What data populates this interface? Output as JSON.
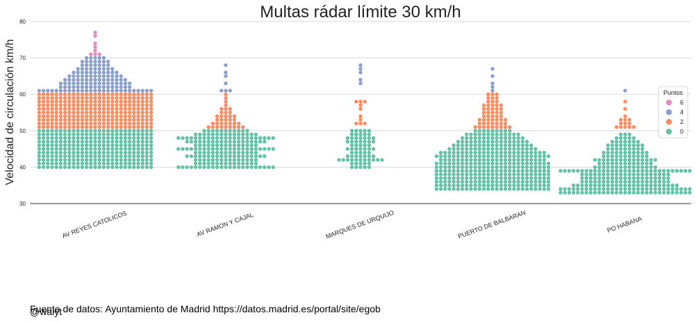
{
  "chart_data": {
    "type": "swarm",
    "title": "Multas rádar límite 30 km/h",
    "xlabel": "",
    "ylabel": "Velocidad de circulación km/h",
    "ylim": [
      30,
      80
    ],
    "yticks": [
      30,
      40,
      50,
      60,
      70,
      80
    ],
    "grid": "horizontal",
    "legend_position": "right",
    "legend_title": "Puntos",
    "series": [
      {
        "name": "6",
        "color": "#e78ac3"
      },
      {
        "name": "4",
        "color": "#8da0cb"
      },
      {
        "name": "2",
        "color": "#fc8d62"
      },
      {
        "name": "0",
        "color": "#66c2a5"
      }
    ],
    "categories": [
      "AV REYES CATOLICOS",
      "AV RAMON Y CAJAL",
      "MARQUES DE URQUIJO",
      "PUERTO DE BALBARAN",
      "PO HABANA"
    ],
    "distributions": [
      {
        "speeds": [
          40,
          41,
          42,
          43,
          44,
          45,
          46,
          47,
          48,
          49,
          50,
          51,
          52,
          53,
          54,
          55,
          56,
          57,
          58,
          59,
          60,
          61,
          62,
          63,
          64,
          65,
          66,
          67,
          68,
          69,
          70,
          71,
          72,
          73,
          74,
          76,
          77
        ],
        "counts": [
          27,
          27,
          27,
          27,
          27,
          27,
          27,
          27,
          27,
          27,
          27,
          27,
          27,
          27,
          27,
          27,
          27,
          27,
          27,
          27,
          27,
          27,
          17,
          17,
          15,
          13,
          11,
          9,
          7,
          7,
          5,
          3,
          1,
          1,
          1,
          1,
          1
        ]
      },
      {
        "speeds": [
          40,
          41,
          42,
          43,
          44,
          45,
          46,
          47,
          48,
          49,
          50,
          51,
          52,
          53,
          54,
          55,
          56,
          57,
          58,
          59,
          60,
          61,
          63,
          65,
          66,
          68
        ],
        "counts": [
          23,
          15,
          15,
          19,
          15,
          23,
          15,
          19,
          23,
          15,
          11,
          9,
          7,
          5,
          5,
          3,
          3,
          1,
          1,
          1,
          1,
          3,
          1,
          1,
          1,
          1
        ]
      },
      {
        "speeds": [
          40,
          41,
          42,
          43,
          44,
          45,
          46,
          47,
          48,
          49,
          50,
          52,
          53,
          54,
          56,
          57,
          58,
          63,
          64,
          66,
          67,
          68
        ],
        "counts": [
          5,
          5,
          11,
          7,
          5,
          7,
          5,
          7,
          7,
          5,
          5,
          3,
          1,
          1,
          1,
          1,
          3,
          1,
          1,
          1,
          1,
          1
        ]
      },
      {
        "speeds": [
          34,
          35,
          36,
          37,
          38,
          39,
          40,
          41,
          42,
          43,
          44,
          45,
          46,
          47,
          48,
          49,
          50,
          51,
          52,
          53,
          54,
          55,
          56,
          57,
          58,
          59,
          60,
          61,
          62,
          63,
          65,
          67
        ],
        "counts": [
          27,
          27,
          27,
          27,
          27,
          27,
          27,
          27,
          25,
          27,
          25,
          21,
          19,
          17,
          15,
          13,
          9,
          9,
          7,
          7,
          5,
          5,
          5,
          5,
          3,
          3,
          3,
          1,
          1,
          1,
          1,
          1
        ]
      },
      {
        "speeds": [
          33,
          34,
          35,
          36,
          37,
          38,
          39,
          40,
          41,
          42,
          43,
          44,
          45,
          46,
          47,
          48,
          49,
          51,
          52,
          53,
          54,
          56,
          58,
          61
        ],
        "counts": [
          31,
          31,
          25,
          21,
          21,
          21,
          31,
          15,
          13,
          15,
          11,
          11,
          9,
          9,
          7,
          5,
          3,
          5,
          3,
          3,
          1,
          1,
          1,
          1
        ]
      }
    ]
  },
  "footer": {
    "source": "Fuente de datos: Ayuntamiento de Madrid https://datos.madrid.es/portal/site/egob",
    "handle": "@walyt"
  }
}
